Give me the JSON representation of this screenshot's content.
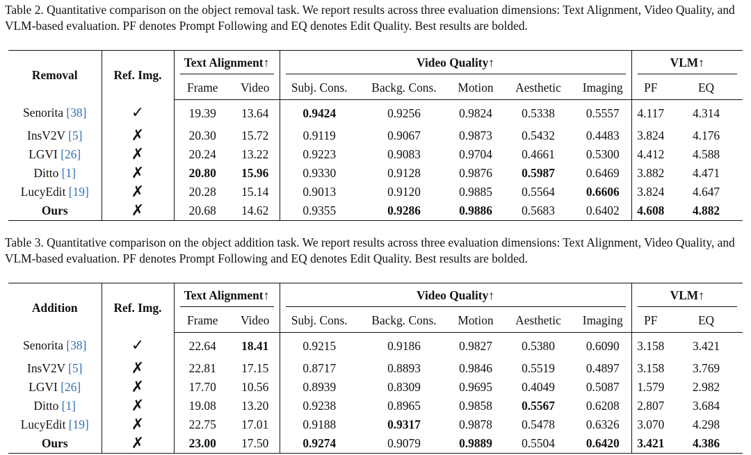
{
  "table2": {
    "caption": "Table 2. Quantitative comparison on the object removal task. We report results across three evaluation dimensions: Text Alignment, Video Quality, and VLM-based evaluation. PF denotes Prompt Following and EQ denotes Edit Quality. Best results are bolded.",
    "headers": {
      "task": "Removal",
      "ref": "Ref. Img.",
      "text_alignment": "Text Alignment↑",
      "video_quality": "Video Quality↑",
      "vlm": "VLM↑",
      "sub": [
        "Frame",
        "Video",
        "Subj. Cons.",
        "Backg. Cons.",
        "Motion",
        "Aesthetic",
        "Imaging",
        "PF",
        "EQ"
      ]
    },
    "rows": [
      {
        "name": "Senorita",
        "cite": "[38]",
        "ref": "✓",
        "vals": [
          "19.39",
          "13.64",
          "0.9424",
          "0.9256",
          "0.9824",
          "0.5338",
          "0.5557",
          "4.117",
          "4.314"
        ],
        "bold": [
          2
        ]
      },
      {
        "name": "InsV2V",
        "cite": "[5]",
        "ref": "✗",
        "vals": [
          "20.30",
          "15.72",
          "0.9119",
          "0.9067",
          "0.9873",
          "0.5432",
          "0.4483",
          "3.824",
          "4.176"
        ],
        "bold": []
      },
      {
        "name": "LGVI",
        "cite": "[26]",
        "ref": "✗",
        "vals": [
          "20.24",
          "13.22",
          "0.9223",
          "0.9083",
          "0.9704",
          "0.4661",
          "0.5300",
          "4.412",
          "4.588"
        ],
        "bold": []
      },
      {
        "name": "Ditto",
        "cite": "[1]",
        "ref": "✗",
        "vals": [
          "20.80",
          "15.96",
          "0.9330",
          "0.9128",
          "0.9876",
          "0.5987",
          "0.6469",
          "3.882",
          "4.471"
        ],
        "bold": [
          0,
          1,
          5
        ]
      },
      {
        "name": "LucyEdit",
        "cite": "[19]",
        "ref": "✗",
        "vals": [
          "20.28",
          "15.14",
          "0.9013",
          "0.9120",
          "0.9885",
          "0.5564",
          "0.6606",
          "3.824",
          "4.647"
        ],
        "bold": [
          6
        ]
      },
      {
        "name": "Ours",
        "cite": "",
        "ref": "✗",
        "vals": [
          "20.68",
          "14.62",
          "0.9355",
          "0.9286",
          "0.9886",
          "0.5683",
          "0.6402",
          "4.608",
          "4.882"
        ],
        "bold": [
          3,
          4,
          7,
          8
        ]
      }
    ]
  },
  "table3": {
    "caption": "Table 3. Quantitative comparison on the object addition task. We report results across three evaluation dimensions: Text Alignment, Video Quality, and VLM-based evaluation. PF denotes Prompt Following and EQ denotes Edit Quality. Best results are bolded.",
    "headers": {
      "task": "Addition",
      "ref": "Ref. Img.",
      "text_alignment": "Text Alignment↑",
      "video_quality": "Video Quality↑",
      "vlm": "VLM↑",
      "sub": [
        "Frame",
        "Video",
        "Subj. Cons.",
        "Backg. Cons.",
        "Motion",
        "Aesthetic",
        "Imaging",
        "PF",
        "EQ"
      ]
    },
    "rows": [
      {
        "name": "Senorita",
        "cite": "[38]",
        "ref": "✓",
        "vals": [
          "22.64",
          "18.41",
          "0.9215",
          "0.9186",
          "0.9827",
          "0.5380",
          "0.6090",
          "3.158",
          "3.421"
        ],
        "bold": [
          1
        ]
      },
      {
        "name": "InsV2V",
        "cite": "[5]",
        "ref": "✗",
        "vals": [
          "22.81",
          "17.15",
          "0.8717",
          "0.8893",
          "0.9846",
          "0.5519",
          "0.4897",
          "3.158",
          "3.769"
        ],
        "bold": []
      },
      {
        "name": "LGVI",
        "cite": "[26]",
        "ref": "✗",
        "vals": [
          "17.70",
          "10.56",
          "0.8939",
          "0.8309",
          "0.9695",
          "0.4049",
          "0.5087",
          "1.579",
          "2.982"
        ],
        "bold": []
      },
      {
        "name": "Ditto",
        "cite": "[1]",
        "ref": "✗",
        "vals": [
          "19.08",
          "13.20",
          "0.9238",
          "0.8965",
          "0.9858",
          "0.5567",
          "0.6208",
          "2.807",
          "3.684"
        ],
        "bold": [
          5
        ]
      },
      {
        "name": "LucyEdit",
        "cite": "[19]",
        "ref": "✗",
        "vals": [
          "22.75",
          "17.01",
          "0.9188",
          "0.9317",
          "0.9878",
          "0.5478",
          "0.6326",
          "3.070",
          "4.298"
        ],
        "bold": [
          3
        ]
      },
      {
        "name": "Ours",
        "cite": "",
        "ref": "✗",
        "vals": [
          "23.00",
          "17.50",
          "0.9274",
          "0.9079",
          "0.9889",
          "0.5504",
          "0.6420",
          "3.421",
          "4.386"
        ],
        "bold": [
          0,
          2,
          4,
          6,
          7,
          8
        ]
      }
    ]
  }
}
